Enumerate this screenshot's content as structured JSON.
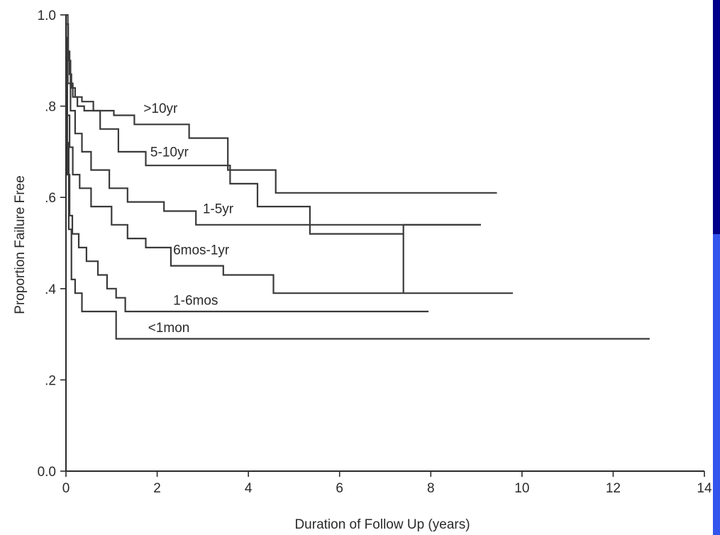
{
  "slide": {
    "background_color": "#00008a",
    "accent_color": "#3355ee",
    "panel_color": "#ffffff"
  },
  "chart_data": {
    "type": "line",
    "title": "",
    "xlabel": "Duration of Follow Up (years)",
    "ylabel": "Proportion Failure Free",
    "xlim": [
      0,
      14
    ],
    "ylim": [
      0,
      1.0
    ],
    "x_ticks": [
      0,
      2,
      4,
      6,
      8,
      10,
      12,
      14
    ],
    "x_tick_labels": [
      "0",
      "2",
      "4",
      "6",
      "8",
      "10",
      "12",
      "14"
    ],
    "y_ticks": [
      0,
      0.2,
      0.4,
      0.6,
      0.8,
      1.0
    ],
    "y_tick_labels": [
      "0.0",
      ".2",
      ".4",
      ".6",
      ".8",
      "1.0"
    ],
    "grid": false,
    "legend": "inline labels",
    "series": [
      {
        "name": ">10yr",
        "x": [
          0,
          0.04,
          0.04,
          0.08,
          0.08,
          0.12,
          0.12,
          0.2,
          0.2,
          0.35,
          0.35,
          0.6,
          0.6,
          1.05,
          1.05,
          1.5,
          1.5,
          2.7,
          2.7,
          3.55,
          3.55,
          4.6,
          4.6,
          9.45
        ],
        "y": [
          1.0,
          1.0,
          0.92,
          0.92,
          0.87,
          0.87,
          0.84,
          0.84,
          0.82,
          0.82,
          0.81,
          0.81,
          0.79,
          0.79,
          0.78,
          0.78,
          0.76,
          0.76,
          0.73,
          0.73,
          0.66,
          0.66,
          0.61,
          0.61
        ]
      },
      {
        "name": "5-10yr",
        "x": [
          0,
          0.05,
          0.05,
          0.1,
          0.1,
          0.15,
          0.15,
          0.25,
          0.25,
          0.4,
          0.4,
          0.75,
          0.75,
          1.15,
          1.15,
          1.75,
          1.75,
          3.6,
          3.6,
          4.2,
          4.2,
          5.35,
          5.35,
          7.4,
          7.4,
          7.4,
          7.4,
          9.1
        ],
        "y": [
          0.98,
          0.98,
          0.9,
          0.9,
          0.85,
          0.85,
          0.82,
          0.82,
          0.8,
          0.8,
          0.79,
          0.79,
          0.75,
          0.75,
          0.7,
          0.7,
          0.67,
          0.67,
          0.63,
          0.63,
          0.58,
          0.58,
          0.52,
          0.52,
          0.39,
          0.39,
          0.54,
          0.54
        ]
      },
      {
        "name": "1-5yr",
        "x": [
          0,
          0.04,
          0.04,
          0.1,
          0.1,
          0.2,
          0.2,
          0.35,
          0.35,
          0.55,
          0.55,
          0.95,
          0.95,
          1.35,
          1.35,
          2.15,
          2.15,
          2.85,
          2.85,
          9.1
        ],
        "y": [
          0.92,
          0.92,
          0.85,
          0.85,
          0.79,
          0.79,
          0.74,
          0.74,
          0.7,
          0.7,
          0.66,
          0.66,
          0.62,
          0.62,
          0.59,
          0.59,
          0.57,
          0.57,
          0.54,
          0.54
        ]
      },
      {
        "name": "6mos-1yr",
        "x": [
          0,
          0.03,
          0.03,
          0.08,
          0.08,
          0.15,
          0.15,
          0.3,
          0.3,
          0.55,
          0.55,
          1.0,
          1.0,
          1.35,
          1.35,
          1.75,
          1.75,
          2.3,
          2.3,
          3.45,
          3.45,
          4.55,
          4.55,
          9.8
        ],
        "y": [
          0.86,
          0.86,
          0.78,
          0.78,
          0.71,
          0.71,
          0.65,
          0.65,
          0.62,
          0.62,
          0.58,
          0.58,
          0.54,
          0.54,
          0.51,
          0.51,
          0.49,
          0.49,
          0.45,
          0.45,
          0.43,
          0.43,
          0.39,
          0.39
        ]
      },
      {
        "name": "1-6mos",
        "x": [
          0,
          0.03,
          0.03,
          0.08,
          0.08,
          0.14,
          0.14,
          0.28,
          0.28,
          0.45,
          0.45,
          0.7,
          0.7,
          0.9,
          0.9,
          1.1,
          1.1,
          1.3,
          1.3,
          7.95
        ],
        "y": [
          0.78,
          0.78,
          0.65,
          0.65,
          0.56,
          0.56,
          0.52,
          0.52,
          0.49,
          0.49,
          0.46,
          0.46,
          0.43,
          0.43,
          0.4,
          0.4,
          0.38,
          0.38,
          0.35,
          0.35
        ]
      },
      {
        "name": "<1mon",
        "x": [
          0,
          0.02,
          0.02,
          0.06,
          0.06,
          0.12,
          0.12,
          0.2,
          0.2,
          0.35,
          0.35,
          1.1,
          1.1,
          12.8
        ],
        "y": [
          0.95,
          0.95,
          0.72,
          0.72,
          0.53,
          0.53,
          0.42,
          0.42,
          0.39,
          0.39,
          0.35,
          0.35,
          0.29,
          0.29
        ]
      }
    ],
    "annotations": [
      {
        "text": ">10yr",
        "x": 1.7,
        "y": 0.785
      },
      {
        "text": "5-10yr",
        "x": 1.85,
        "y": 0.69
      },
      {
        "text": "1-5yr",
        "x": 3.0,
        "y": 0.565
      },
      {
        "text": "6mos-1yr",
        "x": 2.35,
        "y": 0.475
      },
      {
        "text": "1-6mos",
        "x": 2.35,
        "y": 0.365
      },
      {
        "text": "<1mon",
        "x": 1.8,
        "y": 0.305
      }
    ]
  }
}
